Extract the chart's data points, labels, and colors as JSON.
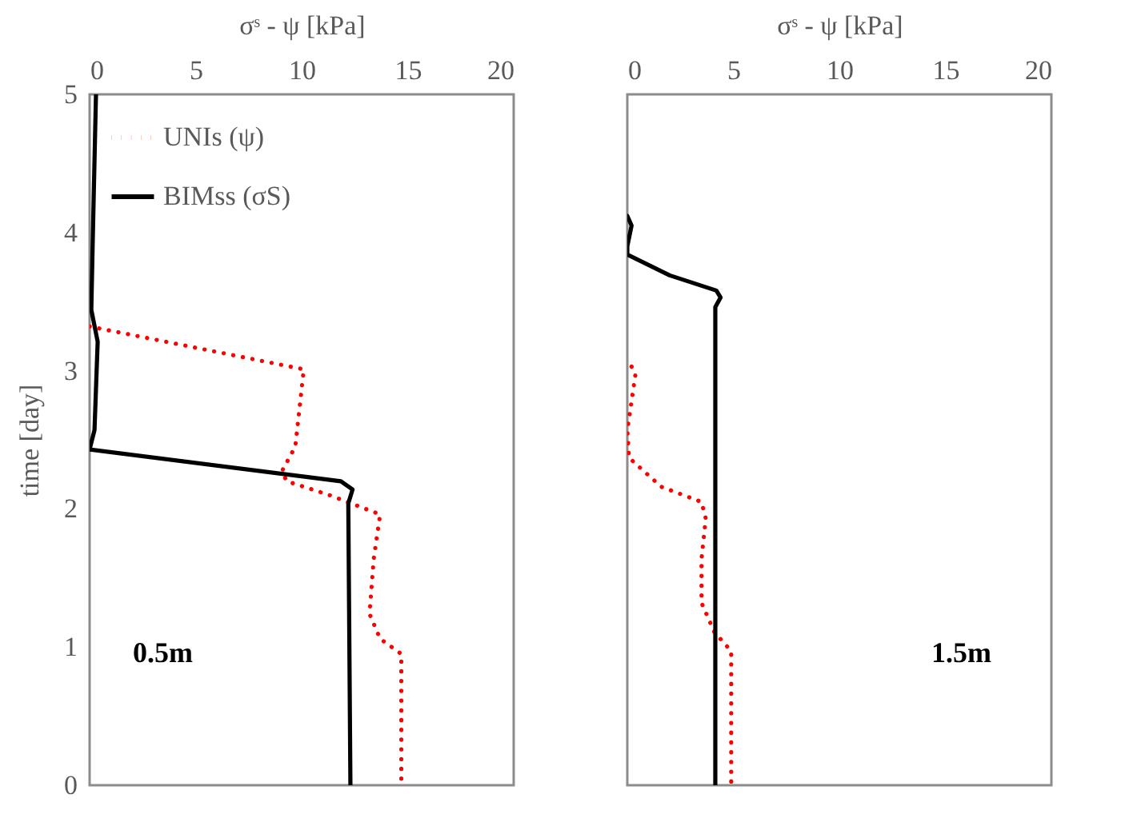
{
  "chart_data": [
    {
      "type": "line",
      "xlabel": "σˢ - ψ [kPa]",
      "ylabel": "time [day]",
      "xlim": [
        0,
        20
      ],
      "xticks": [
        0,
        5,
        10,
        15,
        20
      ],
      "ylim": [
        0,
        5
      ],
      "yticks": [
        0,
        1,
        2,
        3,
        4,
        5
      ],
      "grid": false,
      "legend": "top left",
      "annotations": [
        "0.5m"
      ],
      "series": [
        {
          "name": "UNIs (ψ)",
          "color": "#ff0000",
          "line_style": "dotted",
          "x": [
            0,
            10.1,
            9.7,
            9.06,
            9.3,
            11.3,
            13.7,
            13.4,
            13.2,
            13.7,
            14.7,
            14.7
          ],
          "values": [
            3.32,
            3.01,
            2.45,
            2.27,
            2.2,
            2.1,
            1.96,
            1.64,
            1.24,
            1.06,
            0.95,
            0
          ]
        },
        {
          "name": "BIMss (σS)",
          "color": "#000000",
          "line_style": "solid",
          "x": [
            0.3,
            0.15,
            0.08,
            0.38,
            0.23,
            0,
            11.85,
            12.4,
            12.2,
            12.3
          ],
          "values": [
            5,
            3.96,
            3.44,
            3.21,
            2.57,
            2.43,
            2.2,
            2.14,
            2.04,
            0
          ]
        }
      ]
    },
    {
      "type": "line",
      "xlabel": "σˢ - ψ [kPa]",
      "xlim": [
        0,
        20
      ],
      "xticks": [
        0,
        5,
        10,
        15,
        20
      ],
      "ylim": [
        0,
        5
      ],
      "yticks": [
        0,
        1,
        2,
        3,
        4,
        5
      ],
      "grid": false,
      "tick_labels": "x",
      "annotations": [
        "1.5m"
      ],
      "series": [
        {
          "color": "#ff0000",
          "line_style": "dotted",
          "x": [
            0.2,
            0.38,
            0,
            0.08,
            1.6,
            3.5,
            3.7,
            3.5,
            3.5,
            4.1,
            4.9,
            4.9
          ],
          "values": [
            3.03,
            2.97,
            2.57,
            2.37,
            2.16,
            2.05,
            1.93,
            1.64,
            1.32,
            1.11,
            0.97,
            0
          ]
        },
        {
          "color": "#000000",
          "line_style": "solid",
          "x": [
            0,
            0.2,
            0,
            0,
            2.0,
            4.2,
            4.4,
            4.15,
            4.15
          ],
          "values": [
            4.12,
            4.05,
            3.9,
            3.84,
            3.69,
            3.58,
            3.53,
            3.46,
            0
          ]
        }
      ]
    }
  ]
}
